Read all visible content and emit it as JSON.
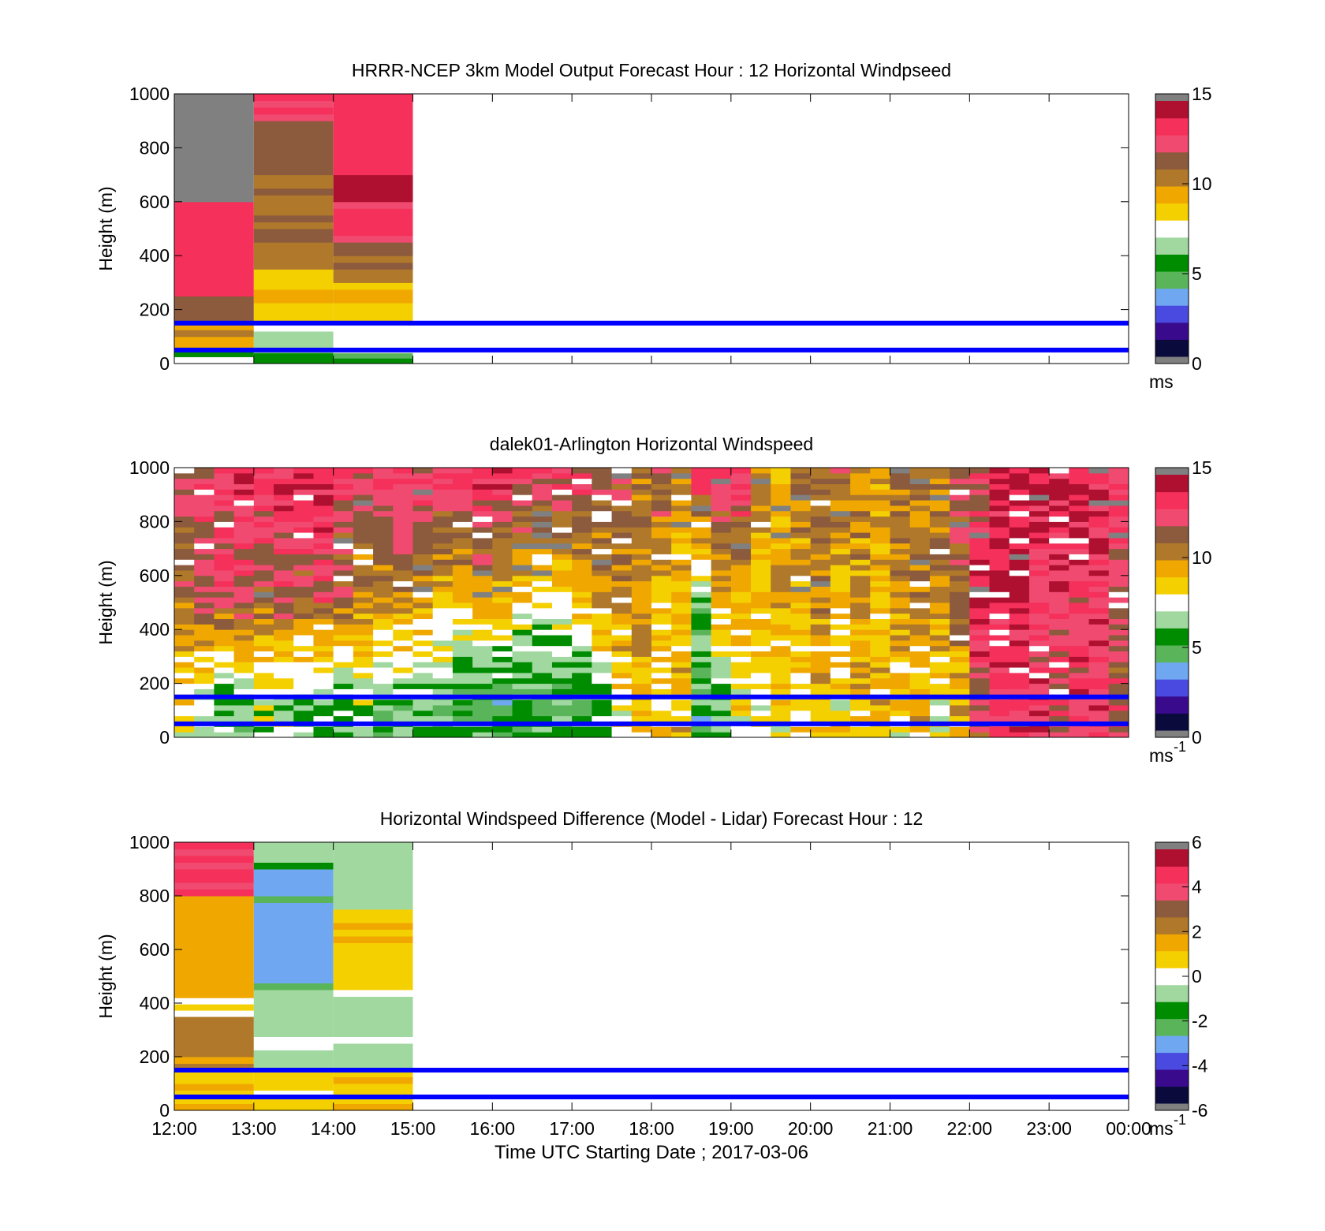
{
  "figure": {
    "xlabel": "Time UTC  Starting Date ; 2017-03-06",
    "x_tick_labels": [
      "12:00",
      "13:00",
      "14:00",
      "15:00",
      "16:00",
      "17:00",
      "18:00",
      "19:00",
      "20:00",
      "21:00",
      "22:00",
      "23:00",
      "00:00"
    ]
  },
  "colors": {
    "reference_lines": "#0000ff",
    "missing": "#808080",
    "colormap": [
      "#0a0a3c",
      "#3a0a8c",
      "#4a4ae0",
      "#6fa8f0",
      "#5ab45a",
      "#008c00",
      "#a0d8a0",
      "#ffffff",
      "#f5d000",
      "#f0a800",
      "#b0782a",
      "#8c5a3c",
      "#f04a70",
      "#f5305a",
      "#b01030"
    ]
  },
  "chart_data": [
    {
      "type": "heatmap",
      "title": "HRRR-NCEP 3km Model Output   Forecast Hour : 12 Horizontal Windpseed",
      "ylabel": "Height (m)",
      "xlim": [
        "12:00",
        "00:00"
      ],
      "ylim": [
        0,
        1000
      ],
      "y_ticks": [
        "0",
        "200",
        "400",
        "600",
        "800",
        "1000"
      ],
      "colorbar": {
        "min": 0,
        "max": 15,
        "ticks": [
          "0",
          "5",
          "10",
          "15"
        ],
        "unit": "ms"
      },
      "reference_lines_m": [
        50,
        150
      ],
      "data_coverage": [
        "12:00",
        "15:00"
      ],
      "columns": [
        {
          "time": "12:00-13:00",
          "layers": [
            {
              "from_m": 0,
              "to_m": 25,
              "value": 7
            },
            {
              "from_m": 25,
              "to_m": 50,
              "value": 6
            },
            {
              "from_m": 50,
              "to_m": 100,
              "value": 9
            },
            {
              "from_m": 100,
              "to_m": 150,
              "value": 10
            },
            {
              "from_m": 150,
              "to_m": 250,
              "value": 11.5
            },
            {
              "from_m": 250,
              "to_m": 600,
              "value": 13.5
            },
            {
              "from_m": 600,
              "to_m": 1000,
              "value": "missing"
            }
          ]
        },
        {
          "time": "13:00-14:00",
          "layers": [
            {
              "from_m": 0,
              "to_m": 40,
              "value": 5
            },
            {
              "from_m": 40,
              "to_m": 120,
              "value": 6.5
            },
            {
              "from_m": 120,
              "to_m": 150,
              "value": 7.5
            },
            {
              "from_m": 150,
              "to_m": 350,
              "value": 9
            },
            {
              "from_m": 350,
              "to_m": 450,
              "value": 10
            },
            {
              "from_m": 450,
              "to_m": 700,
              "value": 11
            },
            {
              "from_m": 700,
              "to_m": 900,
              "value": 11.5
            },
            {
              "from_m": 900,
              "to_m": 1000,
              "value": 13
            }
          ]
        },
        {
          "time": "14:00-15:00",
          "layers": [
            {
              "from_m": 0,
              "to_m": 40,
              "value": 5
            },
            {
              "from_m": 40,
              "to_m": 150,
              "value": 7.5
            },
            {
              "from_m": 150,
              "to_m": 300,
              "value": 9
            },
            {
              "from_m": 300,
              "to_m": 450,
              "value": 11
            },
            {
              "from_m": 450,
              "to_m": 600,
              "value": 13
            },
            {
              "from_m": 600,
              "to_m": 700,
              "value": 14.5
            },
            {
              "from_m": 700,
              "to_m": 1000,
              "value": 13.5
            }
          ]
        }
      ]
    },
    {
      "type": "heatmap",
      "title": "dalek01-Arlington  Horizontal Windspeed",
      "ylabel": "Height (m)",
      "xlim": [
        "12:00",
        "00:00"
      ],
      "ylim": [
        0,
        1000
      ],
      "y_ticks": [
        "0",
        "200",
        "400",
        "600",
        "800",
        "1000"
      ],
      "colorbar": {
        "min": 0,
        "max": 15,
        "ticks": [
          "0",
          "5",
          "10",
          "15"
        ],
        "unit": "ms",
        "unit_exponent": "-1"
      },
      "reference_lines_m": [
        50,
        150
      ],
      "data_coverage": [
        "12:00",
        "23:55"
      ],
      "column_interval_min": 15,
      "column_profiles_ms": [
        {
          "time": "12:00",
          "low": 8,
          "mid": 11,
          "high": 12
        },
        {
          "time": "12:15",
          "low": 7,
          "mid": 12,
          "high": 12
        },
        {
          "time": "12:30",
          "low": 6,
          "mid": 12,
          "high": 13
        },
        {
          "time": "12:45",
          "low": 6,
          "mid": 12,
          "high": 14
        },
        {
          "time": "13:00",
          "low": 7,
          "mid": 11,
          "high": 14
        },
        {
          "time": "13:15",
          "low": 7,
          "mid": 12,
          "high": 14
        },
        {
          "time": "13:30",
          "low": 6,
          "mid": 11,
          "high": 14
        },
        {
          "time": "13:45",
          "low": 6,
          "mid": 12,
          "high": 14
        },
        {
          "time": "14:00",
          "low": 6,
          "mid": 11,
          "high": 13
        },
        {
          "time": "14:15",
          "low": 7,
          "mid": 10,
          "high": 13
        },
        {
          "time": "14:30",
          "low": 6,
          "mid": 10,
          "high": 13
        },
        {
          "time": "14:45",
          "low": 6,
          "mid": 10,
          "high": 14
        },
        {
          "time": "15:00",
          "low": 6,
          "mid": 10,
          "high": 13
        },
        {
          "time": "15:15",
          "low": 6,
          "mid": 9,
          "high": 13
        },
        {
          "time": "15:30",
          "low": 5,
          "mid": 9,
          "high": 13
        },
        {
          "time": "15:45",
          "low": 5,
          "mid": 10,
          "high": 14
        },
        {
          "time": "16:00",
          "low": 5,
          "mid": 9,
          "high": 14
        },
        {
          "time": "16:15",
          "low": 5,
          "mid": 8,
          "high": 14
        },
        {
          "time": "16:30",
          "low": 5,
          "mid": 7,
          "high": 13
        },
        {
          "time": "16:45",
          "low": 5,
          "mid": 8,
          "high": 13
        },
        {
          "time": "17:00",
          "low": 5,
          "mid": 9,
          "high": 13
        },
        {
          "time": "17:15",
          "low": 6,
          "mid": 10,
          "high": 12
        },
        {
          "time": "17:30",
          "low": 8,
          "mid": 10,
          "high": 12
        },
        {
          "time": "17:45",
          "low": 9,
          "mid": 10,
          "high": 11
        },
        {
          "time": "18:00",
          "low": 8,
          "mid": 9,
          "high": 12
        },
        {
          "time": "18:15",
          "low": 9,
          "mid": 9,
          "high": 10
        },
        {
          "time": "18:30",
          "low": 5,
          "mid": 6,
          "high": 14
        },
        {
          "time": "18:45",
          "low": 6,
          "mid": 9,
          "high": 13
        },
        {
          "time": "19:00",
          "low": 8,
          "mid": 9,
          "high": 14
        },
        {
          "time": "19:15",
          "low": 8,
          "mid": 9,
          "high": 10
        },
        {
          "time": "19:30",
          "low": 8,
          "mid": 10,
          "high": 9
        },
        {
          "time": "19:45",
          "low": 8,
          "mid": 9,
          "high": 11
        },
        {
          "time": "20:00",
          "low": 9,
          "mid": 10,
          "high": 11
        },
        {
          "time": "20:15",
          "low": 8,
          "mid": 9,
          "high": 11
        },
        {
          "time": "20:30",
          "low": 9,
          "mid": 10,
          "high": 10
        },
        {
          "time": "20:45",
          "low": 9,
          "mid": 9,
          "high": 10
        },
        {
          "time": "21:00",
          "low": 8,
          "mid": 10,
          "high": 11
        },
        {
          "time": "21:15",
          "low": 9,
          "mid": 10,
          "high": 11
        },
        {
          "time": "21:30",
          "low": 8,
          "mid": 10,
          "high": 11
        },
        {
          "time": "21:45",
          "low": 9,
          "mid": 11,
          "high": 12
        },
        {
          "time": "22:00",
          "low": 12,
          "mid": 14,
          "high": 12
        },
        {
          "time": "22:15",
          "low": 13,
          "mid": 14,
          "high": 14
        },
        {
          "time": "22:30",
          "low": 13,
          "mid": 14,
          "high": 14
        },
        {
          "time": "22:45",
          "low": 13,
          "mid": 13,
          "high": 14
        },
        {
          "time": "23:00",
          "low": 12,
          "mid": 13,
          "high": 14
        },
        {
          "time": "23:15",
          "low": 13,
          "mid": 13,
          "high": 14
        },
        {
          "time": "23:30",
          "low": 13,
          "mid": 13,
          "high": 14
        },
        {
          "time": "23:45",
          "low": 12,
          "mid": 12,
          "high": 13
        }
      ]
    },
    {
      "type": "heatmap",
      "title": "Horizontal Windspeed Difference (Model - Lidar) Forecast Hour : 12",
      "ylabel": "Height (m)",
      "xlim": [
        "12:00",
        "00:00"
      ],
      "ylim": [
        0,
        1000
      ],
      "y_ticks": [
        "0",
        "200",
        "400",
        "600",
        "800",
        "1000"
      ],
      "colorbar": {
        "min": -6,
        "max": 6,
        "ticks": [
          "-6",
          "-4",
          "-2",
          "0",
          "2",
          "4",
          "6"
        ],
        "unit": "ms",
        "unit_exponent": "-1"
      },
      "reference_lines_m": [
        50,
        150
      ],
      "data_coverage": [
        "12:00",
        "15:00"
      ],
      "columns": [
        {
          "time": "12:00-13:00",
          "layers": [
            {
              "from_m": 0,
              "to_m": 150,
              "value": 1
            },
            {
              "from_m": 150,
              "to_m": 350,
              "value": 2
            },
            {
              "from_m": 350,
              "to_m": 420,
              "value": 0.2
            },
            {
              "from_m": 420,
              "to_m": 800,
              "value": 1.5
            },
            {
              "from_m": 800,
              "to_m": 1000,
              "value": 4.5
            }
          ]
        },
        {
          "time": "13:00-14:00",
          "layers": [
            {
              "from_m": 0,
              "to_m": 150,
              "value": 0.5
            },
            {
              "from_m": 150,
              "to_m": 450,
              "value": -0.5
            },
            {
              "from_m": 450,
              "to_m": 900,
              "value": -3
            },
            {
              "from_m": 900,
              "to_m": 1000,
              "value": -1
            }
          ]
        },
        {
          "time": "14:00-15:00",
          "layers": [
            {
              "from_m": 0,
              "to_m": 150,
              "value": 1
            },
            {
              "from_m": 150,
              "to_m": 450,
              "value": -0.5
            },
            {
              "from_m": 450,
              "to_m": 750,
              "value": 1
            },
            {
              "from_m": 750,
              "to_m": 1000,
              "value": -1
            }
          ]
        }
      ]
    }
  ]
}
